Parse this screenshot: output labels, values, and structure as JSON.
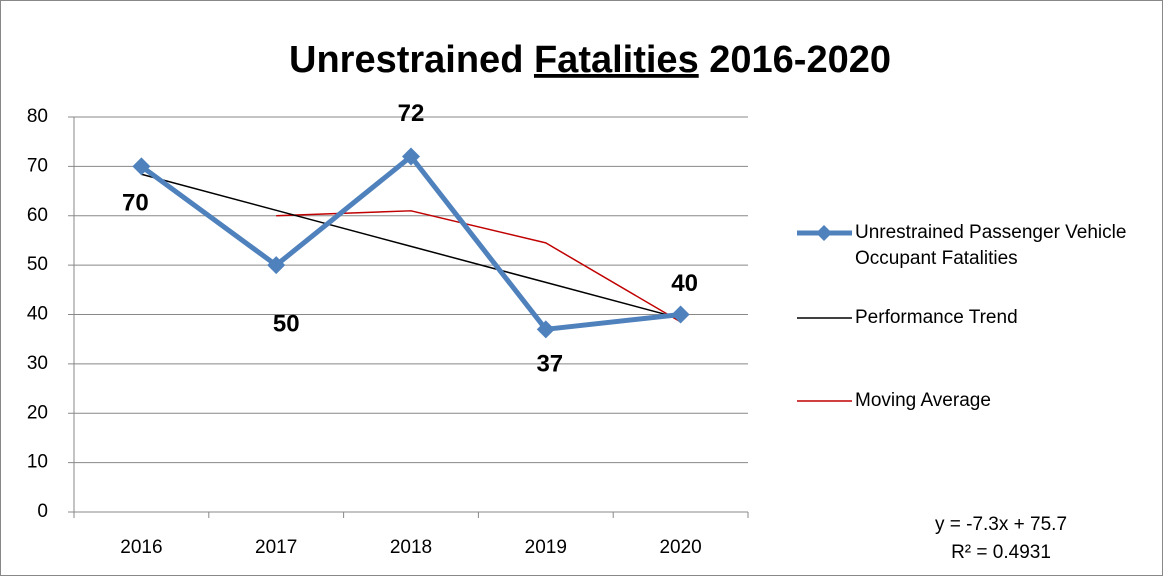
{
  "chart_data": {
    "type": "line",
    "title": [
      "Unrestrained",
      "Fatalities",
      "2016-2020"
    ],
    "title_underline": 1,
    "categories": [
      "2016",
      "2017",
      "2018",
      "2019",
      "2020"
    ],
    "series": [
      {
        "name": "Unrestrained Passenger Vehicle Occupant Fatalities",
        "color": "#4f81bd",
        "marker": "diamond",
        "values": [
          70,
          50,
          72,
          37,
          40
        ],
        "data_labels": true
      },
      {
        "name": "Performance Trend",
        "color": "#000000",
        "values": [
          68.4,
          61.1,
          53.8,
          46.5,
          39.2
        ]
      },
      {
        "name": "Moving Average",
        "color": "#c00000",
        "values": [
          null,
          60,
          61,
          54.5,
          38.5
        ]
      }
    ],
    "ylim": [
      0,
      80
    ],
    "yticks": [
      0,
      10,
      20,
      30,
      40,
      50,
      60,
      70,
      80
    ],
    "grid": true,
    "legend": "right",
    "annotations": [
      "y = -7.3x + 75.7",
      "R² = 0.4931"
    ]
  }
}
